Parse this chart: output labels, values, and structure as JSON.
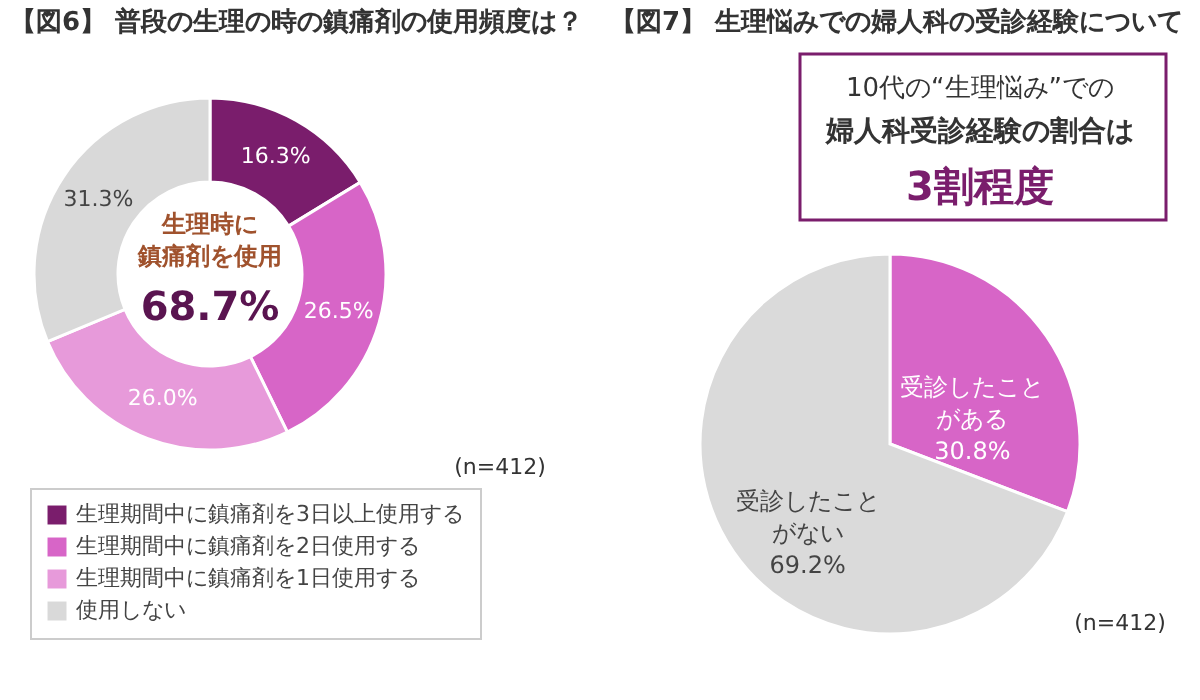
{
  "chart_data": [
    {
      "type": "donut",
      "title": "【図6】 普段の生理の時の鎮痛剤の使用頻度は？",
      "categories": [
        "生理期間中に鎮痛剤を3日以上使用する",
        "生理期間中に鎮痛剤を2日使用する",
        "生理期間中に鎮痛剤を1日使用する",
        "使用しない"
      ],
      "values": [
        16.3,
        26.5,
        26.0,
        31.3
      ],
      "colors": [
        "#7a1d6c",
        "#d765c7",
        "#e79ada",
        "#d9d9d9"
      ],
      "value_labels": [
        "16.3%",
        "26.5%",
        "26.0%",
        "31.3%"
      ],
      "legend": "bottom",
      "annotations": [
        "生理時に",
        "鎮痛剤を使用",
        "68.7%",
        "(n=412)"
      ]
    },
    {
      "type": "pie",
      "title": "【図7】 生理悩みでの婦人科の受診経験について",
      "categories": [
        "受診したことがある",
        "受診したことがない"
      ],
      "values": [
        30.8,
        69.2
      ],
      "colors": [
        "#d765c7",
        "#dadada"
      ],
      "value_labels": [
        "30.8%",
        "69.2%"
      ],
      "legend": false,
      "annotations": [
        "10代の“生理悩み”での",
        "婦人科受診経験の割合は",
        "3割程度",
        "(n=412)"
      ]
    }
  ]
}
